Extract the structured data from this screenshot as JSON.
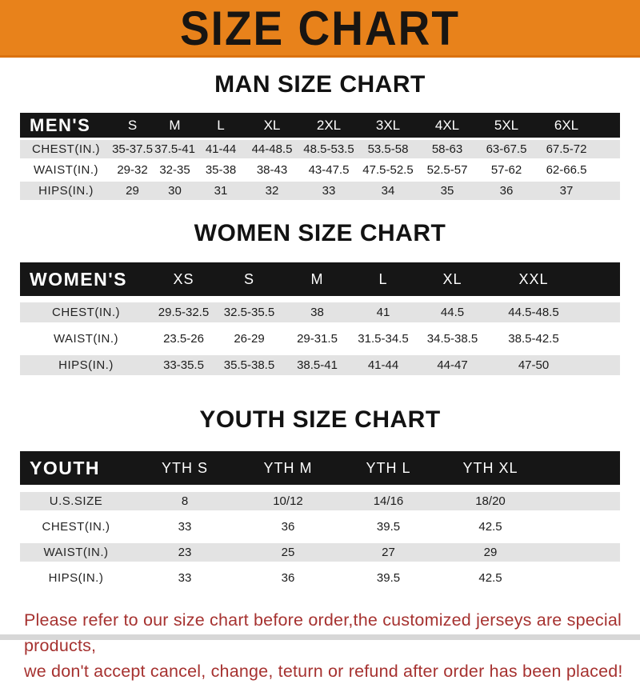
{
  "banner": {
    "title": "SIZE CHART"
  },
  "tables": {
    "men": {
      "heading": "MAN SIZE CHART",
      "label": "MEN'S",
      "columns": [
        "S",
        "M",
        "L",
        "XL",
        "2XL",
        "3XL",
        "4XL",
        "5XL",
        "6XL"
      ],
      "rows": [
        {
          "label": "CHEST(IN.)",
          "values": [
            "35-37.5",
            "37.5-41",
            "41-44",
            "44-48.5",
            "48.5-53.5",
            "53.5-58",
            "58-63",
            "63-67.5",
            "67.5-72"
          ]
        },
        {
          "label": "WAIST(IN.)",
          "values": [
            "29-32",
            "32-35",
            "35-38",
            "38-43",
            "43-47.5",
            "47.5-52.5",
            "52.5-57",
            "57-62",
            "62-66.5"
          ]
        },
        {
          "label": "HIPS(IN.)",
          "values": [
            "29",
            "30",
            "31",
            "32",
            "33",
            "34",
            "35",
            "36",
            "37"
          ]
        }
      ]
    },
    "women": {
      "heading": "WOMEN SIZE CHART",
      "label": "WOMEN'S",
      "columns": [
        "XS",
        "S",
        "M",
        "L",
        "XL",
        "XXL"
      ],
      "rows": [
        {
          "label": "CHEST(IN.)",
          "values": [
            "29.5-32.5",
            "32.5-35.5",
            "38",
            "41",
            "44.5",
            "44.5-48.5"
          ]
        },
        {
          "label": "WAIST(IN.)",
          "values": [
            "23.5-26",
            "26-29",
            "29-31.5",
            "31.5-34.5",
            "34.5-38.5",
            "38.5-42.5"
          ]
        },
        {
          "label": "HIPS(IN.)",
          "values": [
            "33-35.5",
            "35.5-38.5",
            "38.5-41",
            "41-44",
            "44-47",
            "47-50"
          ]
        }
      ]
    },
    "youth": {
      "heading": "YOUTH SIZE CHART",
      "label": "YOUTH",
      "columns": [
        "YTH S",
        "YTH M",
        "YTH L",
        "YTH XL"
      ],
      "rows": [
        {
          "label": "U.S.SIZE",
          "values": [
            "8",
            "10/12",
            "14/16",
            "18/20"
          ]
        },
        {
          "label": "CHEST(IN.)",
          "values": [
            "33",
            "36",
            "39.5",
            "42.5"
          ]
        },
        {
          "label": "WAIST(IN.)",
          "values": [
            "23",
            "25",
            "27",
            "29"
          ]
        },
        {
          "label": "HIPS(IN.)",
          "values": [
            "33",
            "36",
            "39.5",
            "42.5"
          ]
        }
      ]
    }
  },
  "disclaimer": {
    "line1": "Please refer to our size chart before order,the customized jerseys are special products,",
    "line2": "we don't accept cancel, change, teturn or refund after order has been placed!"
  },
  "colors": {
    "banner_orange": "#E8821B",
    "banner_border": "#DB720F",
    "header_black": "#161616",
    "row_gray": "#E3E3E3",
    "disclaimer_red": "#A63230"
  }
}
